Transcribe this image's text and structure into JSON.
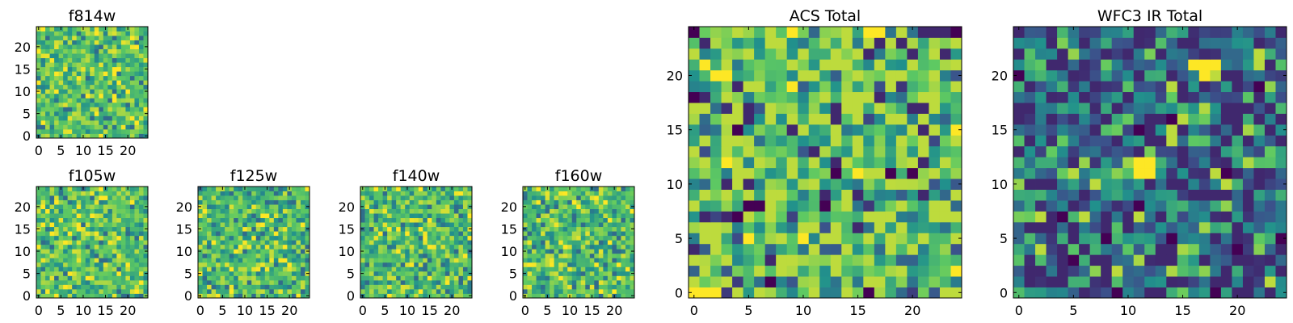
{
  "figure": {
    "colormap": [
      "#440154",
      "#3b528b",
      "#21918c",
      "#5ec962",
      "#fde725"
    ],
    "frame_color": "#000000",
    "background": "#ffffff"
  },
  "chart_data": [
    {
      "type": "heatmap",
      "title": "f814w",
      "grid_size": 25,
      "xlim": [
        0,
        25
      ],
      "ylim": [
        0,
        25
      ],
      "xticks": [
        0,
        5,
        10,
        15,
        20
      ],
      "yticks": [
        0,
        5,
        10,
        15,
        20
      ],
      "xticklabels": [
        "0",
        "5",
        "10",
        "15",
        "20"
      ],
      "yticklabels": [
        "0",
        "5",
        "10",
        "15",
        "20"
      ],
      "xlabel": "",
      "ylabel": "",
      "seed": 814,
      "value_range": [
        0.35,
        0.95
      ],
      "mean": 0.72
    },
    {
      "type": "heatmap",
      "title": "f105w",
      "grid_size": 25,
      "xlim": [
        0,
        25
      ],
      "ylim": [
        0,
        25
      ],
      "xticks": [
        0,
        5,
        10,
        15,
        20
      ],
      "yticks": [
        0,
        5,
        10,
        15,
        20
      ],
      "xticklabels": [
        "0",
        "5",
        "10",
        "15",
        "20"
      ],
      "yticklabels": [
        "0",
        "5",
        "10",
        "15",
        "20"
      ],
      "xlabel": "",
      "ylabel": "",
      "seed": 105,
      "value_range": [
        0.35,
        0.95
      ],
      "mean": 0.72
    },
    {
      "type": "heatmap",
      "title": "f125w",
      "grid_size": 25,
      "xlim": [
        0,
        25
      ],
      "ylim": [
        0,
        25
      ],
      "xticks": [
        0,
        5,
        10,
        15,
        20
      ],
      "yticks": [
        0,
        5,
        10,
        15,
        20
      ],
      "xticklabels": [
        "0",
        "5",
        "10",
        "15",
        "20"
      ],
      "yticklabels": [
        "0",
        "5",
        "10",
        "15",
        "20"
      ],
      "xlabel": "",
      "ylabel": "",
      "seed": 125,
      "value_range": [
        0.35,
        0.95
      ],
      "mean": 0.7
    },
    {
      "type": "heatmap",
      "title": "f140w",
      "grid_size": 25,
      "xlim": [
        0,
        25
      ],
      "ylim": [
        0,
        25
      ],
      "xticks": [
        0,
        5,
        10,
        15,
        20
      ],
      "yticks": [
        0,
        5,
        10,
        15,
        20
      ],
      "xticklabels": [
        "0",
        "5",
        "10",
        "15",
        "20"
      ],
      "yticklabels": [
        "0",
        "5",
        "10",
        "15",
        "20"
      ],
      "xlabel": "",
      "ylabel": "",
      "seed": 140,
      "value_range": [
        0.35,
        0.95
      ],
      "mean": 0.7
    },
    {
      "type": "heatmap",
      "title": "f160w",
      "grid_size": 25,
      "xlim": [
        0,
        25
      ],
      "ylim": [
        0,
        25
      ],
      "xticks": [
        0,
        5,
        10,
        15,
        20
      ],
      "yticks": [
        0,
        5,
        10,
        15,
        20
      ],
      "xticklabels": [
        "0",
        "5",
        "10",
        "15",
        "20"
      ],
      "yticklabels": [
        "0",
        "5",
        "10",
        "15",
        "20"
      ],
      "xlabel": "",
      "ylabel": "",
      "seed": 160,
      "value_range": [
        0.35,
        0.95
      ],
      "mean": 0.7
    },
    {
      "type": "heatmap",
      "title": "ACS Total",
      "grid_size": 25,
      "xlim": [
        0,
        25
      ],
      "ylim": [
        0,
        25
      ],
      "xticks": [
        0,
        5,
        10,
        15,
        20
      ],
      "yticks": [
        0,
        5,
        10,
        15,
        20
      ],
      "xticklabels": [
        "0",
        "5",
        "10",
        "15",
        "20"
      ],
      "yticklabels": [
        "0",
        "5",
        "10",
        "15",
        "20"
      ],
      "xlabel": "",
      "ylabel": "",
      "seed": 1001,
      "value_range": [
        0.0,
        1.0
      ],
      "mean": 0.7,
      "dark_cells": [
        [
          0,
          24
        ],
        [
          24,
          24
        ],
        [
          0,
          18
        ],
        [
          4,
          15
        ],
        [
          7,
          1
        ],
        [
          16,
          0
        ],
        [
          13,
          11
        ],
        [
          18,
          11
        ],
        [
          5,
          8
        ],
        [
          6,
          8
        ],
        [
          12,
          8
        ],
        [
          4,
          7
        ],
        [
          20,
          11
        ]
      ],
      "bright_cells": [
        [
          9,
          24
        ],
        [
          16,
          24
        ],
        [
          17,
          24
        ],
        [
          2,
          20
        ],
        [
          3,
          20
        ],
        [
          1,
          21
        ],
        [
          24,
          2
        ],
        [
          5,
          5
        ],
        [
          10,
          5
        ],
        [
          0,
          0
        ],
        [
          1,
          0
        ],
        [
          2,
          0
        ],
        [
          24,
          15
        ],
        [
          3,
          12
        ],
        [
          9,
          19
        ],
        [
          15,
          11
        ]
      ]
    },
    {
      "type": "heatmap",
      "title": "WFC3 IR Total",
      "grid_size": 25,
      "xlim": [
        0,
        25
      ],
      "ylim": [
        0,
        25
      ],
      "xticks": [
        0,
        5,
        10,
        15,
        20
      ],
      "yticks": [
        0,
        5,
        10,
        15,
        20
      ],
      "xticklabels": [
        "0",
        "5",
        "10",
        "15",
        "20"
      ],
      "yticklabels": [
        "0",
        "5",
        "10",
        "15",
        "20"
      ],
      "xlabel": "",
      "ylabel": "",
      "seed": 2002,
      "value_range": [
        0.0,
        1.0
      ],
      "mean": 0.38,
      "dark_cells": [
        [
          0,
          20
        ],
        [
          4,
          7
        ],
        [
          8,
          5
        ],
        [
          11,
          8
        ],
        [
          11,
          15
        ],
        [
          14,
          16
        ],
        [
          19,
          11
        ],
        [
          24,
          5
        ],
        [
          14,
          5
        ],
        [
          20,
          4
        ],
        [
          18,
          0
        ],
        [
          5,
          3
        ],
        [
          9,
          0
        ],
        [
          22,
          19
        ]
      ],
      "bright_cells": [
        [
          16,
          21
        ],
        [
          17,
          21
        ],
        [
          18,
          21
        ],
        [
          17,
          20
        ],
        [
          11,
          11
        ],
        [
          12,
          11
        ],
        [
          11,
          12
        ],
        [
          12,
          12
        ]
      ]
    }
  ]
}
